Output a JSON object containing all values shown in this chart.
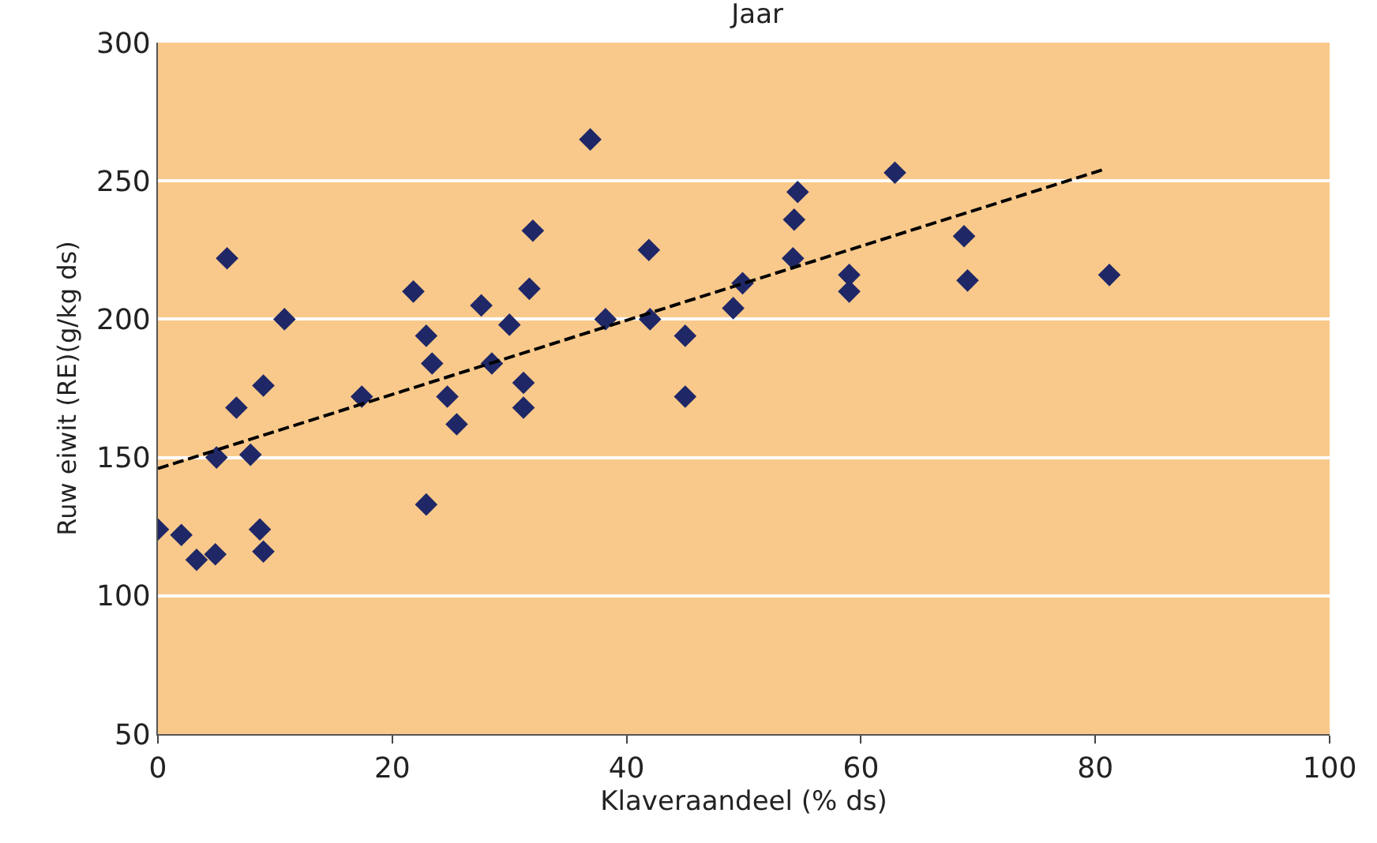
{
  "chart_data": {
    "type": "scatter",
    "title": "Jaar",
    "xlabel": "Klaveraandeel (% ds)",
    "ylabel": "Ruw eiwit (RE)(g/kg ds)",
    "xlim": [
      0,
      100
    ],
    "xticks": [
      0,
      20,
      40,
      60,
      80,
      100
    ],
    "ylim": [
      50,
      300
    ],
    "yticks": [
      50,
      100,
      150,
      200,
      250,
      300
    ],
    "grid": "y",
    "legend": false,
    "marker": "diamond",
    "series": [
      {
        "color": "#1f2766",
        "x": [
          0,
          2,
          3.3,
          4.9,
          5,
          5.9,
          6.7,
          7.9,
          8.7,
          9,
          9,
          10.8,
          17.4,
          21.8,
          22.9,
          22.9,
          23.4,
          24.7,
          25.5,
          27.6,
          28.5,
          30,
          31.2,
          31.2,
          31.7,
          32,
          36.9,
          38.2,
          41.9,
          42,
          45,
          45,
          49.1,
          49.9,
          54.2,
          54.3,
          54.6,
          59,
          59,
          62.9,
          68.8,
          69.1,
          81.2
        ],
        "values": [
          124,
          122,
          113,
          115,
          150,
          222,
          168,
          151,
          124,
          116,
          176,
          200,
          172,
          210,
          194,
          133,
          184,
          172,
          162,
          205,
          184,
          198,
          177,
          168,
          211,
          232,
          265,
          200,
          225,
          200,
          194,
          172,
          204,
          213,
          222,
          236,
          246,
          216,
          210,
          253,
          230,
          214,
          216
        ]
      },
      {
        "type": "line",
        "color": "#000000",
        "line_style": "dashed",
        "marker": "none",
        "x": [
          0,
          80.6
        ],
        "values": [
          146,
          254
        ]
      }
    ]
  }
}
